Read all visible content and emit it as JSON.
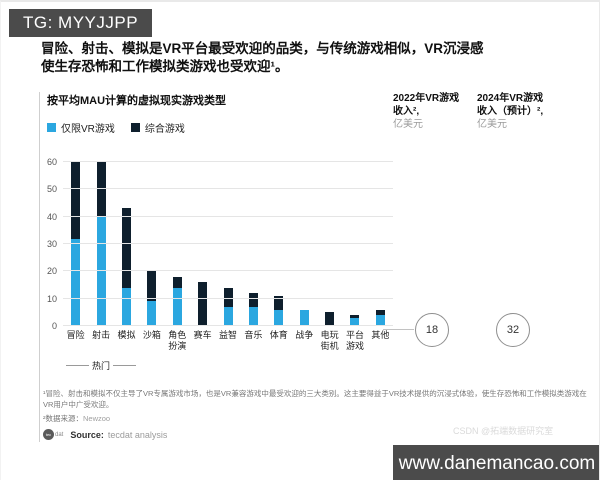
{
  "overlays": {
    "tg_badge": "TG: MYYJJPP",
    "website_badge": "www.danemancao.com",
    "watermark": "CSDN @拓端数据研究室"
  },
  "title": {
    "line1": "冒险、射击、模拟是VR平台最受欢迎的品类，与传统游戏相似，VR沉浸感",
    "line2": "使生存恐怖和工作模拟类游戏也受欢迎¹。"
  },
  "exhibit": {
    "subtitle": "按平均MAU计算的虚拟现实游戏类型",
    "revenue_2022": {
      "line1": "2022年VR游戏",
      "line2": "收入²,",
      "unit": "亿美元",
      "value": "18"
    },
    "revenue_2024": {
      "line1": "2024年VR游戏",
      "line2": "收入（预计）²,",
      "unit": "亿美元",
      "value": "32"
    }
  },
  "chart_data": {
    "type": "bar",
    "stacked": true,
    "title": "按平均MAU计算的虚拟现实游戏类型",
    "xlabel": "",
    "ylabel": "平均MAU",
    "categories": [
      "冒险",
      "射击",
      "模拟",
      "沙箱",
      "角色\n扮演",
      "赛车",
      "益智",
      "音乐",
      "体育",
      "战争",
      "电玩\n街机",
      "平台\n游戏",
      "其他"
    ],
    "series": [
      {
        "name": "仅限VR游戏",
        "color": "#2BA7E0",
        "values": [
          32,
          40,
          14,
          9,
          14,
          0,
          7,
          7,
          6,
          6,
          0,
          3,
          4
        ]
      },
      {
        "name": "综合游戏",
        "color": "#0E1F2D",
        "values": [
          28,
          20,
          29,
          11,
          4,
          16,
          7,
          5,
          5,
          0,
          5,
          1,
          2
        ]
      }
    ],
    "totals": [
      60,
      60,
      43,
      20,
      18,
      16,
      14,
      12,
      11,
      6,
      5,
      4,
      6
    ],
    "ylim": [
      0,
      60
    ],
    "yticks": [
      0,
      10,
      20,
      30,
      40,
      50,
      60
    ],
    "grid": true,
    "legend_position": "top-left",
    "hot_group": {
      "label": "热门",
      "span_categories": [
        "冒险",
        "射击",
        "模拟"
      ]
    },
    "annotations": [
      {
        "label": "2022年VR游戏收入, 亿美元",
        "value": 18
      },
      {
        "label": "2024年VR游戏收入（预计）, 亿美元",
        "value": 32
      }
    ]
  },
  "footnotes": {
    "note1": "¹冒险、射击和模拟不仅主导了VR专属游戏市场，也是VR兼容游戏中最受欢迎的三大类别。这主要得益于VR技术提供的沉浸式体验，使生存恐怖和工作模拟类游戏在VR用户中广受欢迎。",
    "note2_label": "²数据来源：",
    "note2_value": "Newzoo"
  },
  "source": {
    "logo_text": "tec",
    "logo_suffix": "dat",
    "label": "Source:",
    "text": "tecdat analysis"
  }
}
